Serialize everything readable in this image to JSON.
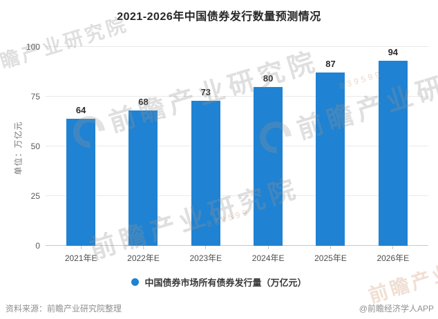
{
  "title": "2021-2026年中国债券发行数量预测情况",
  "chart_data": {
    "type": "bar",
    "title": "2021-2026年中国债券发行数量预测情况",
    "categories": [
      "2021年E",
      "2022年E",
      "2023年E",
      "2024年E",
      "2025年E",
      "2026年E"
    ],
    "values": [
      64,
      68,
      73,
      80,
      87,
      94
    ],
    "series_name": "中国债券市场所有债券发行量（万亿元）",
    "xlabel": "",
    "ylabel": "单位：万亿元",
    "ylim": [
      0,
      100
    ],
    "yticks": [
      0,
      25,
      50,
      75,
      100
    ],
    "grid": "horizontal-only",
    "legend_position": "bottom",
    "bar_color": "#1f82d2"
  },
  "y_axis": {
    "unit_label": "单位：万亿元"
  },
  "legend": {
    "label": "中国债券市场所有债券发行量（万亿元）",
    "marker_color": "#1f82d2"
  },
  "footer": {
    "source": "资料来源：前瞻产业研究院整理",
    "credit": "@前瞻经济学人APP"
  },
  "watermark": {
    "text": "前瞻产业研究院",
    "digits": "839599"
  }
}
